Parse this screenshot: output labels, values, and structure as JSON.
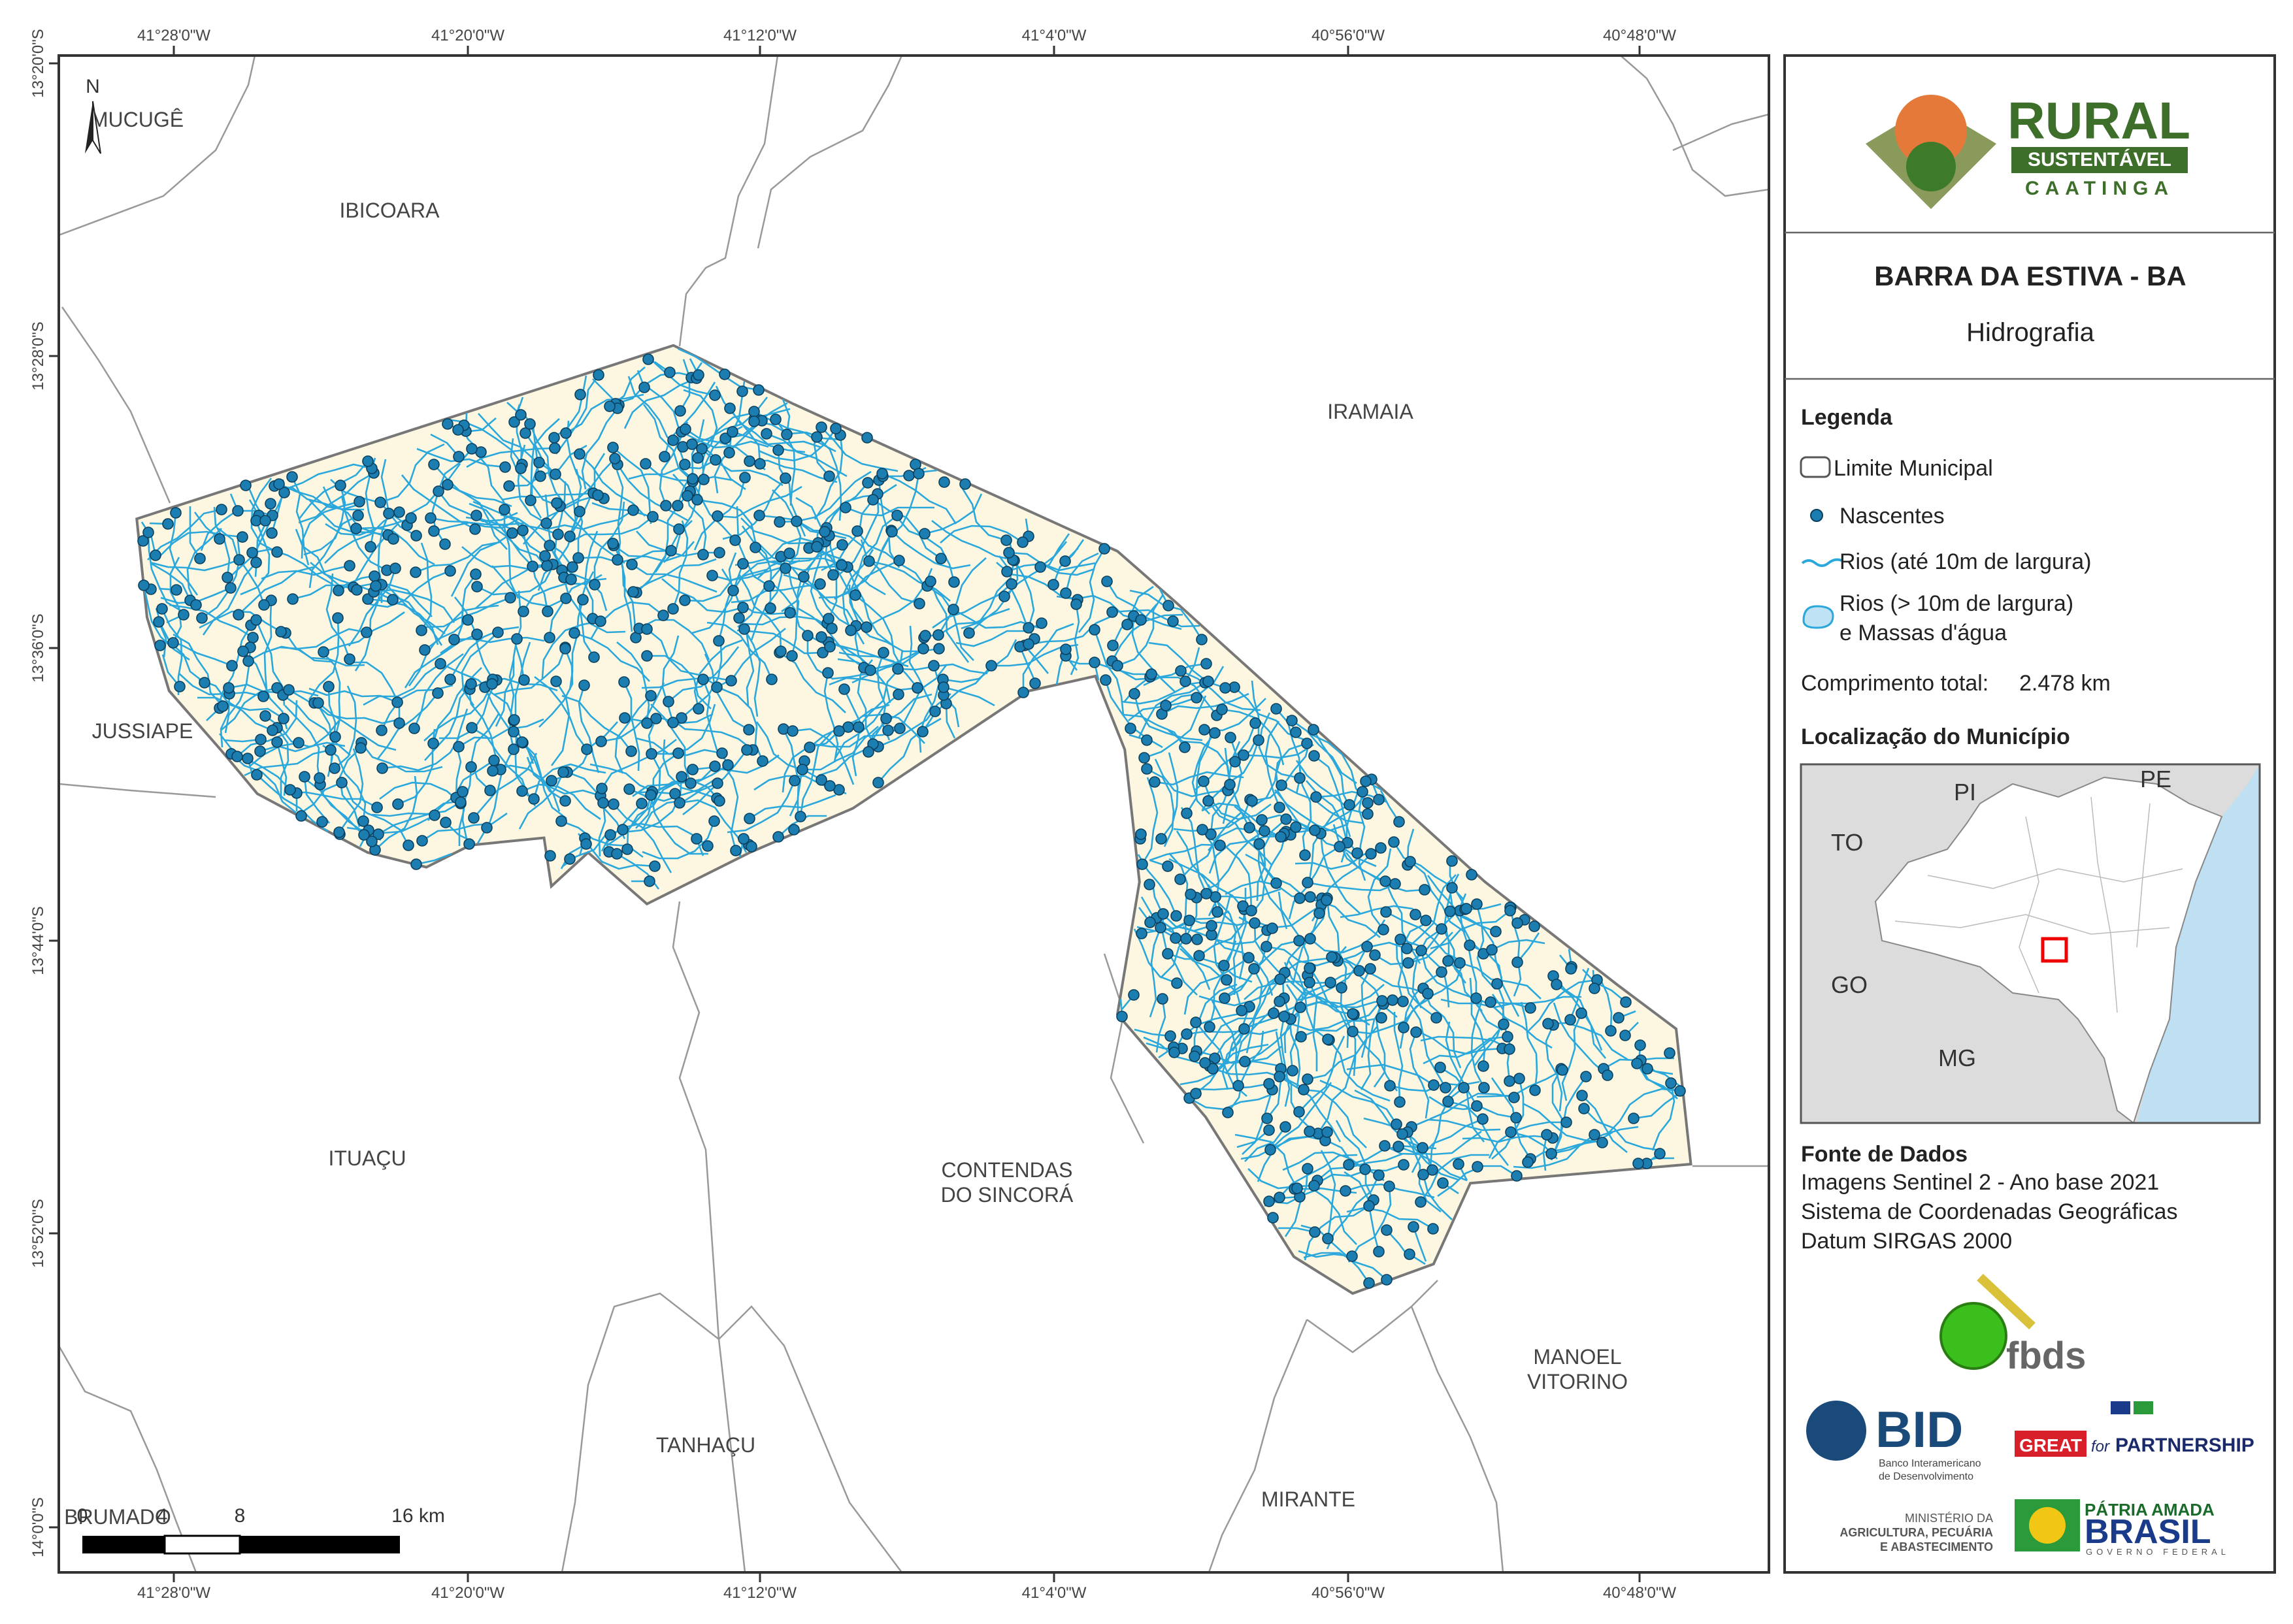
{
  "map": {
    "north": "N",
    "top_ticks": [
      "41°28'0\"W",
      "41°20'0\"W",
      "41°12'0\"W",
      "41°4'0\"W",
      "40°56'0\"W",
      "40°48'0\"W"
    ],
    "bottom_ticks": [
      "41°28'0\"W",
      "41°20'0\"W",
      "41°12'0\"W",
      "41°4'0\"W",
      "40°56'0\"W",
      "40°48'0\"W"
    ],
    "left_ticks": [
      "13°20'0\"S",
      "13°28'0\"S",
      "13°36'0\"S",
      "13°44'0\"S",
      "13°52'0\"S",
      "14°0'0\"S"
    ],
    "places": [
      [
        "MUCUGÊ"
      ],
      [
        "IBICOARA"
      ],
      [
        "IRAMAIA"
      ],
      [
        "JUSSIAPE"
      ],
      [
        "ITUAÇU"
      ],
      [
        "CONTENDAS",
        "DO SINCORÁ"
      ],
      [
        "TANHAÇU"
      ],
      [
        "MIRANTE"
      ],
      [
        "MANOEL",
        "VITORINO"
      ],
      [
        "BRUMADO"
      ]
    ],
    "scale_bar": [
      "0",
      "4",
      "8",
      "16 km"
    ]
  },
  "panel": {
    "logo": {
      "line1": "RURAL",
      "line2": "SUSTENTÁVEL",
      "line3": "CAATINGA"
    },
    "title": "BARRA DA ESTIVA - BA",
    "subtitle": "Hidrografia",
    "legend": {
      "title": "Legenda",
      "items": [
        "Limite Municipal",
        "Nascentes",
        "Rios (até 10m de largura)",
        [
          "Rios (> 10m de largura)",
          "e Massas d'água"
        ]
      ]
    },
    "total_length": {
      "label": "Comprimento total:",
      "value": "2.478 km"
    },
    "location": {
      "title": "Localização do Município",
      "labels": [
        "PI",
        "PE",
        "TO",
        "GO",
        "MG"
      ]
    },
    "sources": {
      "title": "Fonte de Dados",
      "lines": [
        "Imagens Sentinel 2 - Ano base 2021",
        "Sistema de Coordenadas Geográficas",
        "Datum SIRGAS 2000"
      ]
    },
    "logos": {
      "fbds": "fbds",
      "bid": "BID",
      "bid_sub": [
        "Banco Interamericano",
        "de Desenvolvimento"
      ],
      "great": [
        "GREAT",
        "for",
        "PARTNERSHIP"
      ],
      "ministry": [
        "MINISTÉRIO DA",
        "AGRICULTURA, PECUÁRIA",
        "E ABASTECIMENTO"
      ],
      "brasil": [
        "PÁTRIA AMADA",
        "BRASIL",
        "GOVERNO FEDERAL"
      ]
    }
  }
}
